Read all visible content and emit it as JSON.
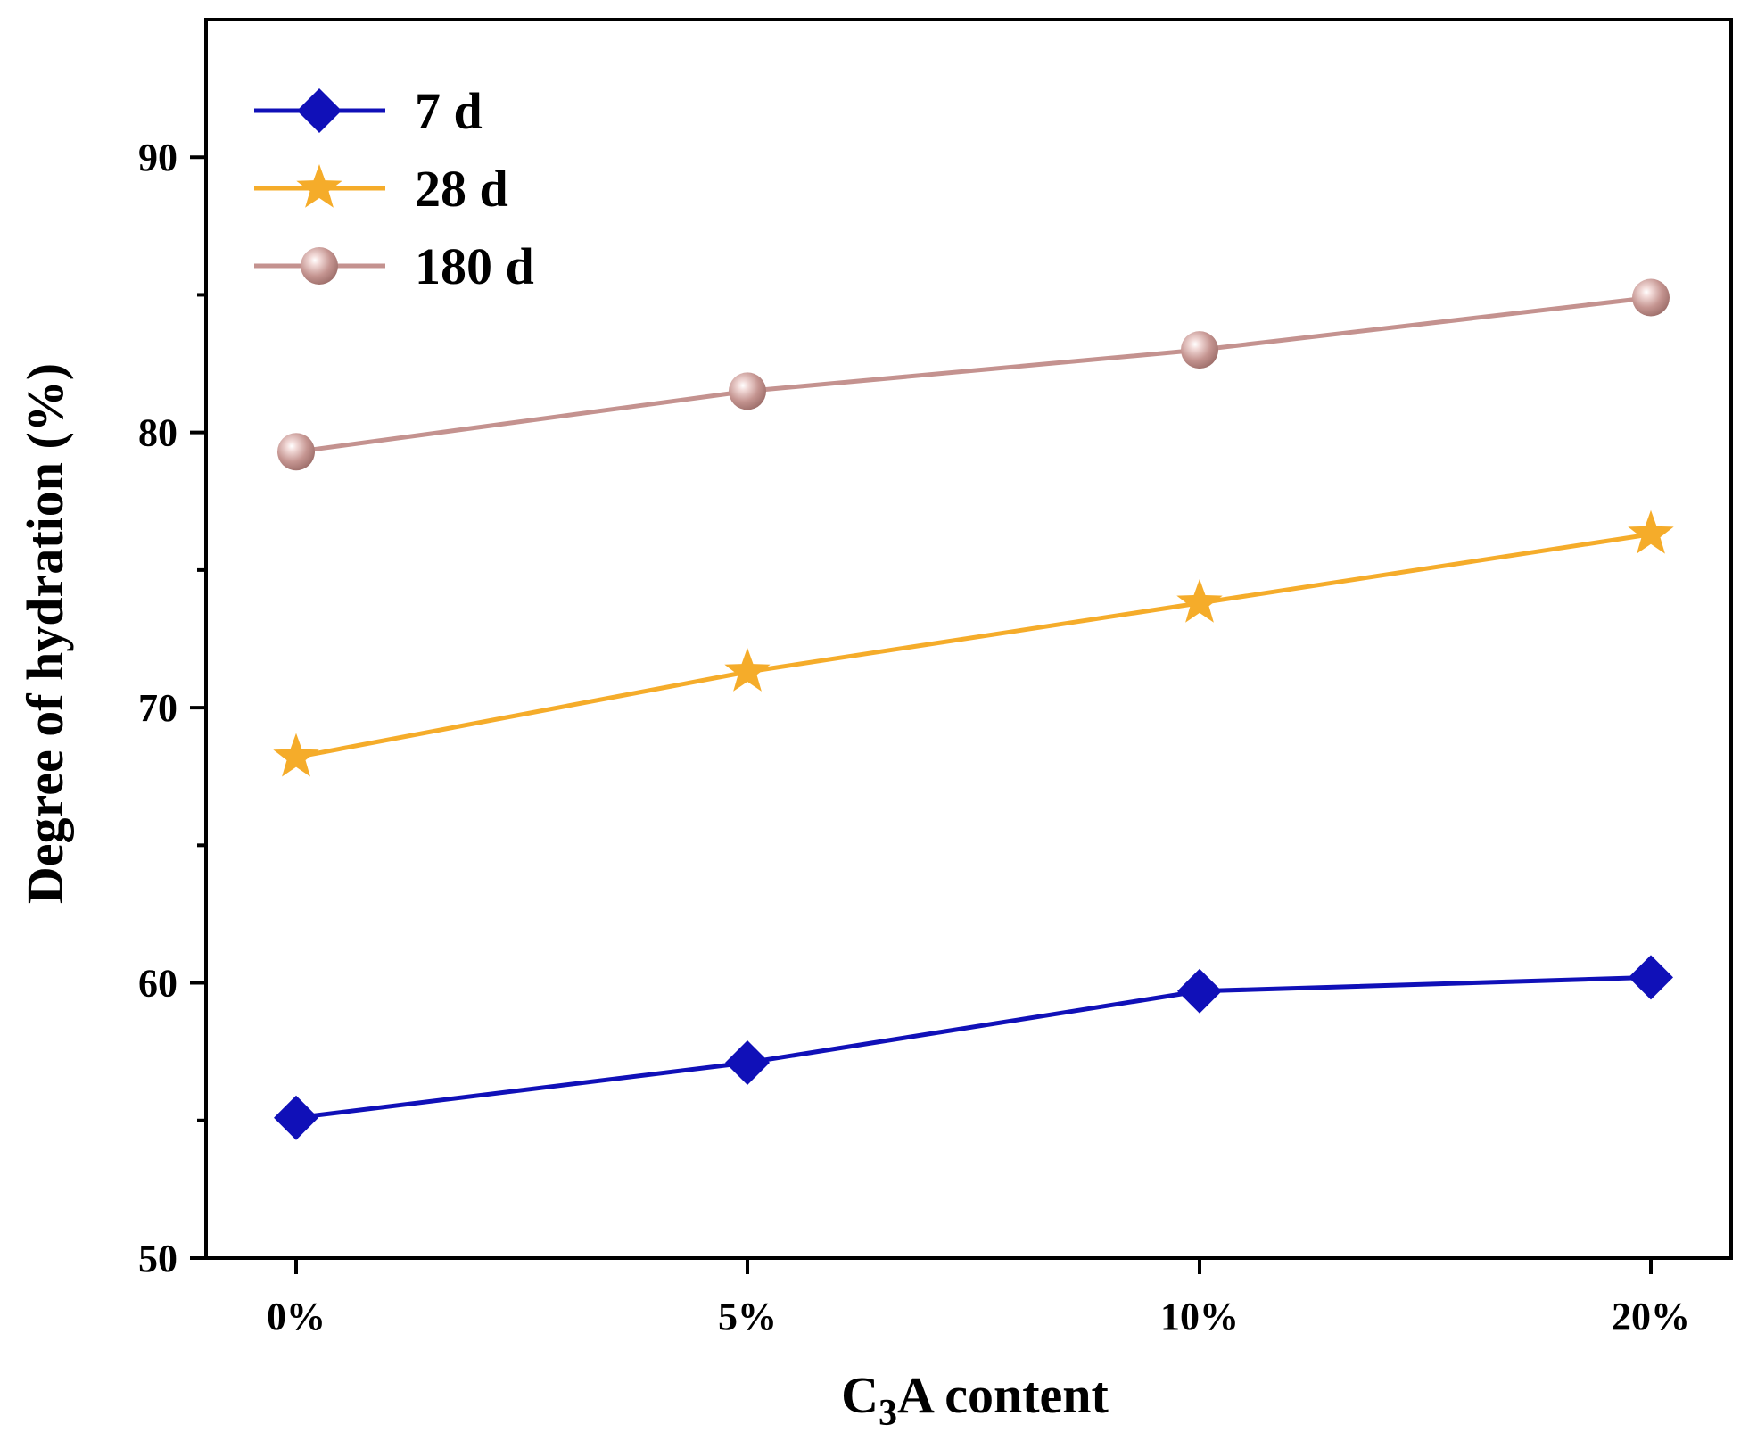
{
  "chart_data": {
    "type": "line",
    "title": "",
    "xlabel": "C3A content",
    "xlabel_main": "C",
    "xlabel_sub": "3",
    "xlabel_rest": "A content",
    "ylabel": "Degree of hydration (%)",
    "categories": [
      "0%",
      "5%",
      "10%",
      "20%"
    ],
    "ylim": [
      50,
      95
    ],
    "yticks": [
      50,
      60,
      70,
      80,
      90
    ],
    "yticks_minor": [
      55,
      65,
      75,
      85
    ],
    "legend_position": "top-left",
    "grid": false,
    "series": [
      {
        "name": "7 d",
        "marker": "diamond",
        "color": "#1010b8",
        "values": [
          55.1,
          57.1,
          59.7,
          60.2
        ]
      },
      {
        "name": "28 d",
        "marker": "star",
        "color": "#f5ac2a",
        "values": [
          68.2,
          71.3,
          73.8,
          76.3
        ]
      },
      {
        "name": "180 d",
        "marker": "sphere",
        "color": "#c4928f",
        "values": [
          79.3,
          81.5,
          83.0,
          84.9
        ]
      }
    ]
  }
}
